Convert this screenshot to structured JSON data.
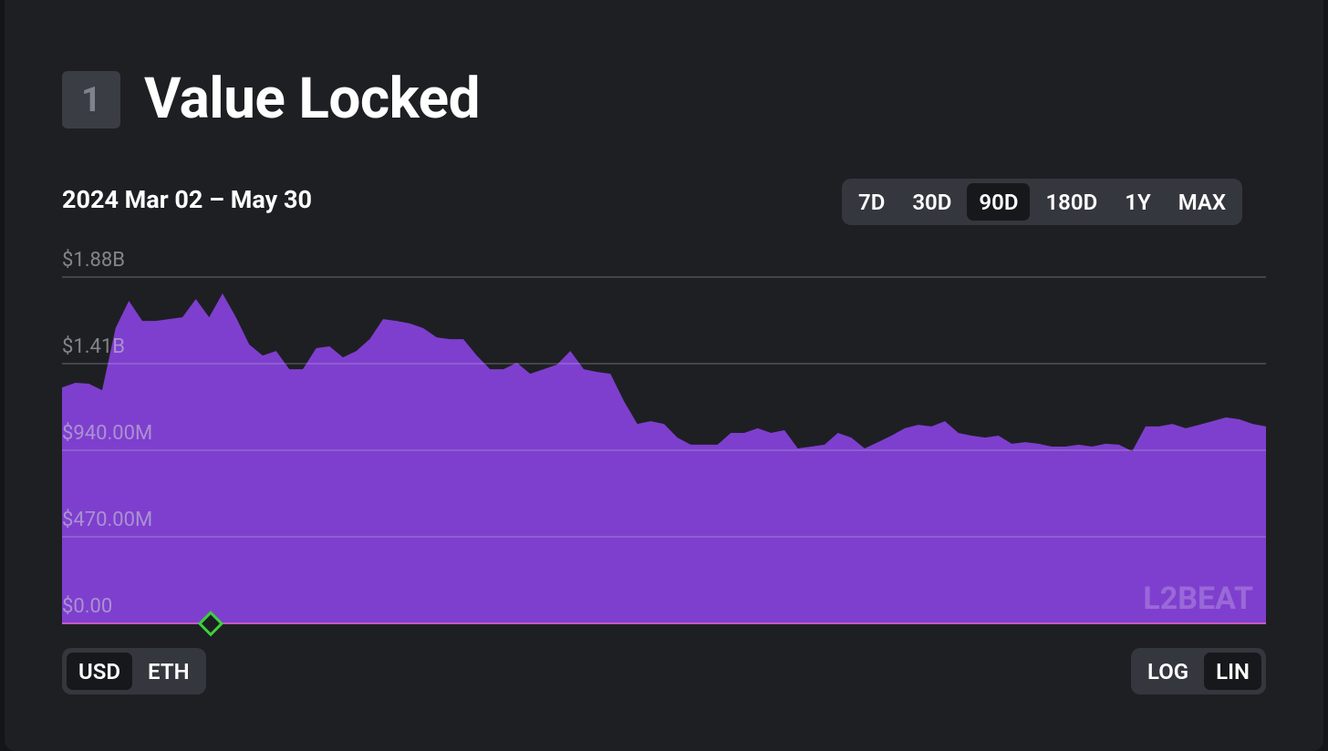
{
  "header": {
    "badge": "1",
    "title": "Value Locked"
  },
  "chart_data": {
    "type": "area",
    "subtitle": "2024 Mar 02 – May 30",
    "range_buttons": [
      "7D",
      "30D",
      "90D",
      "180D",
      "1Y",
      "MAX"
    ],
    "active_range": 2,
    "unit_buttons": [
      "USD",
      "ETH"
    ],
    "active_unit": 0,
    "scale_buttons": [
      "LOG",
      "LIN"
    ],
    "active_scale": 1,
    "log_scale": false,
    "watermark": "L2BEAT",
    "color": "#7e3fce",
    "grid": true,
    "ylim": [
      0,
      1880000000
    ],
    "yticks": [
      {
        "value": 0,
        "label": "$0.00"
      },
      {
        "value": 470000000,
        "label": "$470.00M"
      },
      {
        "value": 940000000,
        "label": "$940.00M"
      },
      {
        "value": 1410000000,
        "label": "$1.41B"
      },
      {
        "value": 1880000000,
        "label": "$1.88B"
      }
    ],
    "values": [
      1281000000,
      1306000000,
      1301000000,
      1266000000,
      1603000000,
      1751000000,
      1642000000,
      1642000000,
      1652000000,
      1662000000,
      1761000000,
      1662000000,
      1791000000,
      1662000000,
      1514000000,
      1454000000,
      1479000000,
      1380000000,
      1380000000,
      1494000000,
      1504000000,
      1444000000,
      1479000000,
      1543000000,
      1652000000,
      1642000000,
      1628000000,
      1603000000,
      1553000000,
      1543000000,
      1543000000,
      1454000000,
      1380000000,
      1380000000,
      1415000000,
      1355000000,
      1380000000,
      1405000000,
      1479000000,
      1380000000,
      1365000000,
      1355000000,
      1207000000,
      1083000000,
      1098000000,
      1083000000,
      1009000000,
      970000000,
      970000000,
      970000000,
      1034000000,
      1034000000,
      1059000000,
      1034000000,
      1049000000,
      950000000,
      960000000,
      970000000,
      1034000000,
      1009000000,
      950000000,
      984000000,
      1019000000,
      1059000000,
      1078000000,
      1069000000,
      1098000000,
      1034000000,
      1019000000,
      1009000000,
      1019000000,
      975000000,
      984000000,
      975000000,
      960000000,
      960000000,
      970000000,
      960000000,
      975000000,
      970000000,
      935000000,
      1069000000,
      1069000000,
      1083000000,
      1059000000,
      1078000000,
      1098000000,
      1118000000,
      1108000000,
      1083000000,
      1069000000
    ]
  }
}
